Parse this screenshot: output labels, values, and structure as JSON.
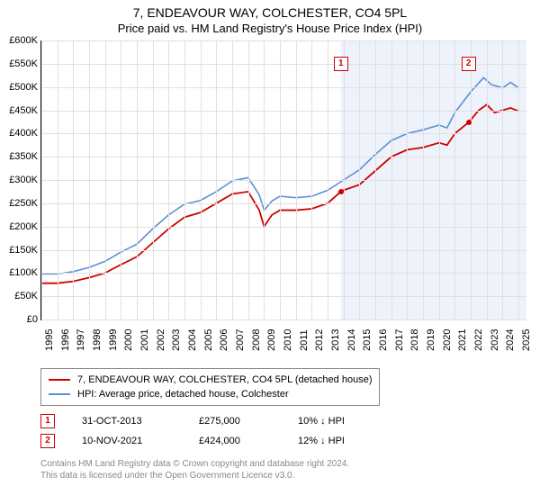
{
  "title": "7, ENDEAVOUR WAY, COLCHESTER, CO4 5PL",
  "subtitle": "Price paid vs. HM Land Registry's House Price Index (HPI)",
  "chart": {
    "type": "line",
    "background_color": "#ffffff",
    "grid_color": "#e0e0e0",
    "shade_color": "#eaf0fa",
    "title_fontsize": 14,
    "subtitle_fontsize": 13,
    "axis_label_fontsize": 11,
    "x_years": [
      1995,
      1996,
      1997,
      1998,
      1999,
      2000,
      2001,
      2002,
      2003,
      2004,
      2005,
      2006,
      2007,
      2008,
      2009,
      2010,
      2011,
      2012,
      2013,
      2014,
      2015,
      2016,
      2017,
      2018,
      2019,
      2020,
      2021,
      2022,
      2023,
      2024,
      2025
    ],
    "xlim": [
      1995,
      2025.5
    ],
    "ylim": [
      0,
      600000
    ],
    "ytick_step": 50000,
    "ytick_labels": [
      "£0",
      "£50K",
      "£100K",
      "£150K",
      "£200K",
      "£250K",
      "£300K",
      "£350K",
      "£400K",
      "£450K",
      "£500K",
      "£550K",
      "£600K"
    ],
    "x_rotation": -90,
    "shade_from_x": 2013.83,
    "series": [
      {
        "name": "7, ENDEAVOUR WAY, COLCHESTER, CO4 5PL (detached house)",
        "color": "#d00000",
        "line_width": 1.8,
        "points": [
          [
            1995,
            78000
          ],
          [
            1996,
            78000
          ],
          [
            1997,
            82000
          ],
          [
            1998,
            90000
          ],
          [
            1999,
            100000
          ],
          [
            2000,
            118000
          ],
          [
            2001,
            135000
          ],
          [
            2002,
            165000
          ],
          [
            2003,
            195000
          ],
          [
            2004,
            220000
          ],
          [
            2005,
            230000
          ],
          [
            2006,
            250000
          ],
          [
            2007,
            270000
          ],
          [
            2008,
            275000
          ],
          [
            2008.7,
            235000
          ],
          [
            2009,
            200000
          ],
          [
            2009.5,
            225000
          ],
          [
            2010,
            235000
          ],
          [
            2011,
            235000
          ],
          [
            2012,
            238000
          ],
          [
            2013,
            250000
          ],
          [
            2013.83,
            275000
          ],
          [
            2014,
            278000
          ],
          [
            2015,
            290000
          ],
          [
            2016,
            320000
          ],
          [
            2017,
            350000
          ],
          [
            2018,
            365000
          ],
          [
            2019,
            370000
          ],
          [
            2020,
            380000
          ],
          [
            2020.5,
            375000
          ],
          [
            2021,
            400000
          ],
          [
            2021.86,
            424000
          ],
          [
            2022.5,
            450000
          ],
          [
            2023,
            462000
          ],
          [
            2023.5,
            445000
          ],
          [
            2024,
            450000
          ],
          [
            2024.5,
            455000
          ],
          [
            2025,
            448000
          ]
        ]
      },
      {
        "name": "HPI: Average price, detached house, Colchester",
        "color": "#5b8fd6",
        "line_width": 1.6,
        "points": [
          [
            1995,
            98000
          ],
          [
            1996,
            98000
          ],
          [
            1997,
            103000
          ],
          [
            1998,
            112000
          ],
          [
            1999,
            125000
          ],
          [
            2000,
            145000
          ],
          [
            2001,
            162000
          ],
          [
            2002,
            195000
          ],
          [
            2003,
            225000
          ],
          [
            2004,
            248000
          ],
          [
            2005,
            256000
          ],
          [
            2006,
            275000
          ],
          [
            2007,
            298000
          ],
          [
            2008,
            305000
          ],
          [
            2008.7,
            268000
          ],
          [
            2009,
            235000
          ],
          [
            2009.5,
            255000
          ],
          [
            2010,
            265000
          ],
          [
            2011,
            262000
          ],
          [
            2012,
            265000
          ],
          [
            2013,
            278000
          ],
          [
            2014,
            300000
          ],
          [
            2015,
            322000
          ],
          [
            2016,
            355000
          ],
          [
            2017,
            385000
          ],
          [
            2018,
            400000
          ],
          [
            2019,
            408000
          ],
          [
            2020,
            418000
          ],
          [
            2020.5,
            412000
          ],
          [
            2021,
            445000
          ],
          [
            2022,
            490000
          ],
          [
            2022.8,
            520000
          ],
          [
            2023.3,
            505000
          ],
          [
            2024,
            498000
          ],
          [
            2024.5,
            510000
          ],
          [
            2025,
            498000
          ]
        ]
      }
    ],
    "sale_markers": [
      {
        "n": "1",
        "x": 2013.83,
        "y": 275000,
        "box_y": 565000,
        "dot_color": "#d00000"
      },
      {
        "n": "2",
        "x": 2021.86,
        "y": 424000,
        "box_y": 565000,
        "dot_color": "#d00000"
      }
    ]
  },
  "legend": {
    "border_color": "#888888",
    "fontsize": 11,
    "items": [
      {
        "color": "#d00000",
        "label": "7, ENDEAVOUR WAY, COLCHESTER, CO4 5PL (detached house)"
      },
      {
        "color": "#5b8fd6",
        "label": "HPI: Average price, detached house, Colchester"
      }
    ]
  },
  "sales": [
    {
      "n": "1",
      "date": "31-OCT-2013",
      "price": "£275,000",
      "delta": "10% ↓ HPI"
    },
    {
      "n": "2",
      "date": "10-NOV-2021",
      "price": "£424,000",
      "delta": "12% ↓ HPI"
    }
  ],
  "footer_line1": "Contains HM Land Registry data © Crown copyright and database right 2024.",
  "footer_line2": "This data is licensed under the Open Government Licence v3.0."
}
